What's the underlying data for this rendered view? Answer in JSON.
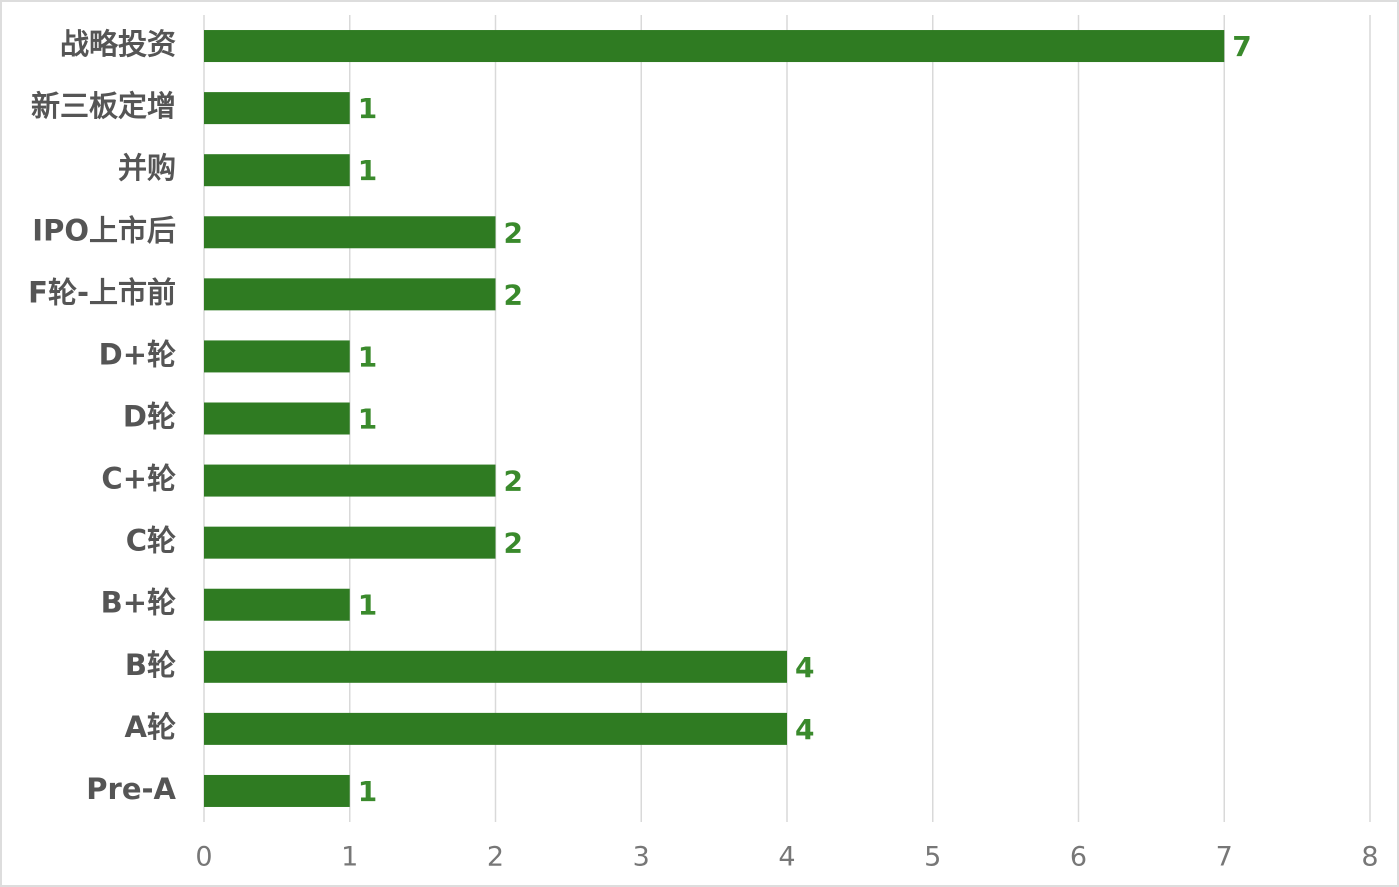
{
  "chart_data": {
    "type": "bar",
    "orientation": "horizontal",
    "categories": [
      "战略投资",
      "新三板定增",
      "并购",
      "IPO上市后",
      "F轮-上市前",
      "D+轮",
      "D轮",
      "C+轮",
      "C轮",
      "B+轮",
      "B轮",
      "A轮",
      "Pre-A"
    ],
    "values": [
      7,
      1,
      1,
      2,
      2,
      1,
      1,
      2,
      2,
      1,
      4,
      4,
      1
    ],
    "color": "#2f7b22",
    "xlim": [
      0,
      8
    ],
    "xticks": [
      0,
      1,
      2,
      3,
      4,
      5,
      6,
      7,
      8
    ],
    "grid": true
  }
}
